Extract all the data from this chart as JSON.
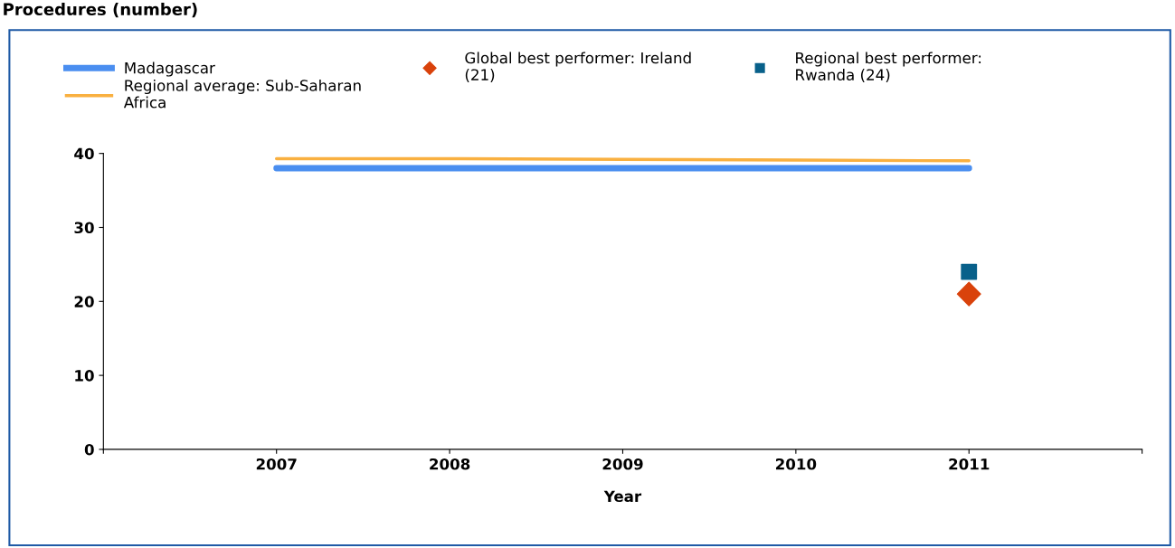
{
  "chart_data": {
    "type": "line",
    "title": "Procedures (number)",
    "xlabel": "Year",
    "x": [
      2007,
      2008,
      2009,
      2010,
      2011
    ],
    "series": [
      {
        "name": "Madagascar",
        "color": "#4a8ef0",
        "values": [
          38,
          38,
          38,
          38,
          38
        ],
        "marker": "none"
      },
      {
        "name": "Regional average: Sub-Saharan\nAfrica",
        "color": "#f9b040",
        "values": [
          39.3,
          39.3,
          39.2,
          39.1,
          39.0
        ],
        "marker": "none"
      },
      {
        "name": "Global best performer: Ireland\n(21)",
        "type": "scatter",
        "color": "#d9420b",
        "x": [
          2011
        ],
        "values": [
          21
        ],
        "marker": "diamond"
      },
      {
        "name": "Regional best performer:\nRwanda (24)",
        "type": "scatter",
        "color": "#08608a",
        "x": [
          2011
        ],
        "values": [
          24
        ],
        "marker": "square"
      }
    ],
    "xlim": [
      2006,
      2012
    ],
    "xticks": [
      {
        "value": 2006,
        "label": null
      },
      2007,
      2008,
      2009,
      2010,
      2011,
      {
        "value": 2012,
        "label": null
      }
    ],
    "ylim": [
      0,
      40
    ],
    "yticks": [
      0,
      10,
      20,
      30,
      40
    ],
    "grid": false,
    "legend": "top"
  }
}
